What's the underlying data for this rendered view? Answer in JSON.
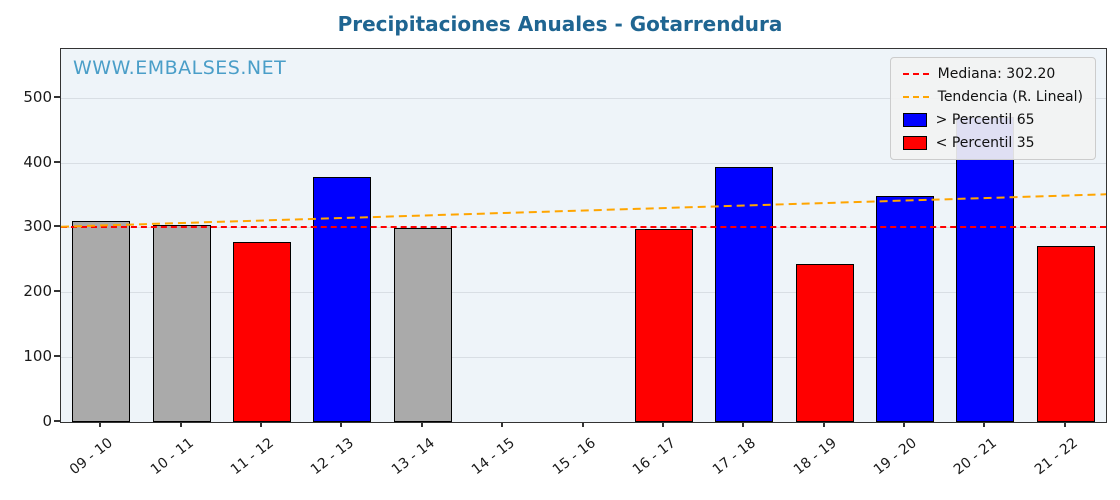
{
  "title": "Precipitaciones Anuales - Gotarrendura",
  "watermark": "WWW.EMBALSES.NET",
  "colors": {
    "title": "#1f6591",
    "watermark": "#4a9ec8",
    "above_percentile": "#0000ff",
    "below_percentile": "#ff0000",
    "mid_percentile": "#aaaaaa",
    "median_line": "#ff0000",
    "trend_line": "#ffa500",
    "plot_background": "#eef4f9"
  },
  "legend": {
    "items": [
      {
        "label": "Mediana: 302.20",
        "type": "dashed-line",
        "color": "#ff0000"
      },
      {
        "label": "Tendencia (R. Lineal)",
        "type": "dashed-line",
        "color": "#ffa500"
      },
      {
        "label": "> Percentil 65",
        "type": "patch",
        "color": "#0000ff"
      },
      {
        "label": "< Percentil 35",
        "type": "patch",
        "color": "#ff0000"
      }
    ]
  },
  "chart_data": {
    "type": "bar",
    "title": "Precipitaciones Anuales - Gotarrendura",
    "categories": [
      "09 - 10",
      "10 - 11",
      "11 - 12",
      "12 - 13",
      "13 - 14",
      "14 - 15",
      "15 - 16",
      "16 - 17",
      "17 - 18",
      "18 - 19",
      "19 - 20",
      "20 - 21",
      "21 - 22"
    ],
    "values": [
      310,
      304,
      277,
      378,
      299,
      null,
      null,
      297,
      393,
      243,
      348,
      470,
      272
    ],
    "bar_colors": [
      "#aaaaaa",
      "#aaaaaa",
      "#ff0000",
      "#0000ff",
      "#aaaaaa",
      null,
      null,
      "#ff0000",
      "#0000ff",
      "#ff0000",
      "#0000ff",
      "#0000ff",
      "#ff0000"
    ],
    "median": 302.2,
    "trend": {
      "start_value": 301,
      "end_value": 351
    },
    "xlabel": "",
    "ylabel": "",
    "ylim": [
      0,
      575
    ],
    "yticks": [
      0,
      100,
      200,
      300,
      400,
      500
    ],
    "grid": true,
    "legend_position": "upper right"
  }
}
